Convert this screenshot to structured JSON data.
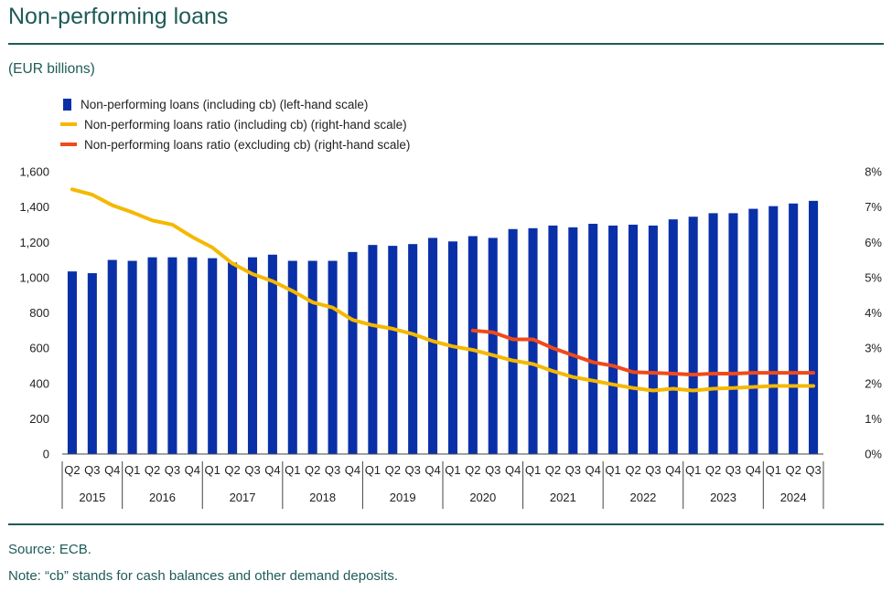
{
  "title": "Non-performing loans",
  "subtitle": "(EUR billions)",
  "source": "Source: ECB.",
  "note": "Note: “cb” stands for cash balances and other demand deposits.",
  "colors": {
    "accent": "#1e5b57",
    "bars": "#0a30a8",
    "ratio_incl": "#f5b800",
    "ratio_excl": "#f04a1a"
  },
  "legend": [
    {
      "label": "Non-performing loans (including cb) (left-hand scale)",
      "color": "#0a30a8",
      "kind": "bar"
    },
    {
      "label": "Non-performing loans ratio (including cb) (right-hand scale)",
      "color": "#f5b800",
      "kind": "line"
    },
    {
      "label": "Non-performing loans ratio (excluding cb) (right-hand scale)",
      "color": "#f04a1a",
      "kind": "line"
    }
  ],
  "chart_data": {
    "type": "bar",
    "categories": [
      "Q2",
      "Q3",
      "Q4",
      "Q1",
      "Q2",
      "Q3",
      "Q4",
      "Q1",
      "Q2",
      "Q3",
      "Q4",
      "Q1",
      "Q2",
      "Q3",
      "Q4",
      "Q1",
      "Q2",
      "Q3",
      "Q4",
      "Q1",
      "Q2",
      "Q3",
      "Q4",
      "Q1",
      "Q2",
      "Q3",
      "Q4",
      "Q1",
      "Q2",
      "Q3",
      "Q4",
      "Q1",
      "Q2",
      "Q3",
      "Q4",
      "Q1",
      "Q2",
      "Q3"
    ],
    "years": [
      {
        "label": "2015",
        "start": 0,
        "count": 3
      },
      {
        "label": "2016",
        "start": 3,
        "count": 4
      },
      {
        "label": "2017",
        "start": 7,
        "count": 4
      },
      {
        "label": "2018",
        "start": 11,
        "count": 4
      },
      {
        "label": "2019",
        "start": 15,
        "count": 4
      },
      {
        "label": "2020",
        "start": 19,
        "count": 4
      },
      {
        "label": "2021",
        "start": 23,
        "count": 4
      },
      {
        "label": "2022",
        "start": 27,
        "count": 4
      },
      {
        "label": "2023",
        "start": 31,
        "count": 4
      },
      {
        "label": "2024",
        "start": 35,
        "count": 3
      }
    ],
    "series": [
      {
        "name": "Non-performing loans (including cb) (left-hand scale)",
        "kind": "bar",
        "axis": "left",
        "values": [
          1035,
          1025,
          1100,
          1095,
          1115,
          1115,
          1115,
          1110,
          1085,
          1115,
          1130,
          1095,
          1095,
          1095,
          1145,
          1185,
          1180,
          1190,
          1225,
          1205,
          1235,
          1225,
          1275,
          1280,
          1295,
          1285,
          1305,
          1295,
          1300,
          1295,
          1330,
          1345,
          1365,
          1365,
          1390,
          1405,
          1420,
          1435
        ]
      },
      {
        "name": "Non-performing loans ratio (including cb) (right-hand scale)",
        "kind": "line",
        "axis": "right",
        "values": [
          7.5,
          7.35,
          7.05,
          6.85,
          6.62,
          6.5,
          6.15,
          5.85,
          5.4,
          5.1,
          4.9,
          4.62,
          4.3,
          4.15,
          3.8,
          3.65,
          3.55,
          3.4,
          3.2,
          3.05,
          2.95,
          2.8,
          2.65,
          2.55,
          2.35,
          2.18,
          2.08,
          1.97,
          1.87,
          1.8,
          1.85,
          1.8,
          1.85,
          1.87,
          1.9,
          1.93,
          1.93,
          1.93
        ]
      },
      {
        "name": "Non-performing loans ratio (excluding cb) (right-hand scale)",
        "kind": "line",
        "axis": "right",
        "values": [
          null,
          null,
          null,
          null,
          null,
          null,
          null,
          null,
          null,
          null,
          null,
          null,
          null,
          null,
          null,
          null,
          null,
          null,
          null,
          null,
          3.5,
          3.45,
          3.25,
          3.25,
          3.0,
          2.8,
          2.6,
          2.5,
          2.32,
          2.3,
          2.28,
          2.25,
          2.28,
          2.28,
          2.3,
          2.3,
          2.3,
          2.3
        ]
      }
    ],
    "left_axis": {
      "ylim": [
        0,
        1600
      ],
      "ticks": [
        "0",
        "200",
        "400",
        "600",
        "800",
        "1,000",
        "1,200",
        "1,400",
        "1,600"
      ]
    },
    "right_axis": {
      "ylim": [
        0,
        8
      ],
      "ticks": [
        "0%",
        "1%",
        "2%",
        "3%",
        "4%",
        "5%",
        "6%",
        "7%",
        "8%"
      ]
    },
    "grid": false,
    "legend_placement": "top-left"
  }
}
